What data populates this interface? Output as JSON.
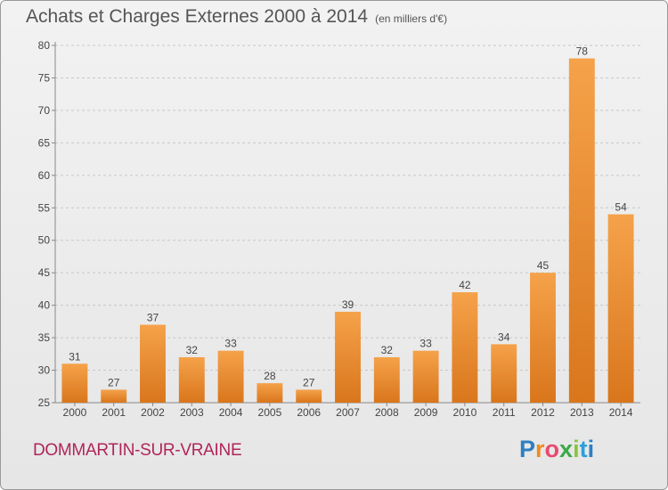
{
  "header": {
    "title": "Achats et Charges Externes 2000 à 2014",
    "subtitle": "(en milliers d'€)"
  },
  "footer": {
    "commune": "DOMMARTIN-SUR-VRAINE",
    "logo_letters": [
      "P",
      "r",
      "o",
      "x",
      "i",
      "t",
      "i"
    ]
  },
  "colors": {
    "bar_light": "#f5a24a",
    "bar_dark": "#d9761c",
    "grid": "#c8c8c8",
    "axis": "#888888"
  },
  "chart_data": {
    "type": "bar",
    "title": "Achats et Charges Externes 2000 à 2014",
    "subtitle": "(en milliers d'€)",
    "categories": [
      "2000",
      "2001",
      "2002",
      "2003",
      "2004",
      "2005",
      "2006",
      "2007",
      "2008",
      "2009",
      "2010",
      "2011",
      "2012",
      "2013",
      "2014"
    ],
    "values": [
      31,
      27,
      37,
      32,
      33,
      28,
      27,
      39,
      32,
      33,
      42,
      34,
      45,
      78,
      54
    ],
    "ylim": [
      25,
      80
    ],
    "yticks": [
      25,
      30,
      35,
      40,
      45,
      50,
      55,
      60,
      65,
      70,
      75,
      80
    ],
    "grid": true,
    "grid_style": "dashed-horizontal",
    "xlabel": "",
    "ylabel": ""
  }
}
